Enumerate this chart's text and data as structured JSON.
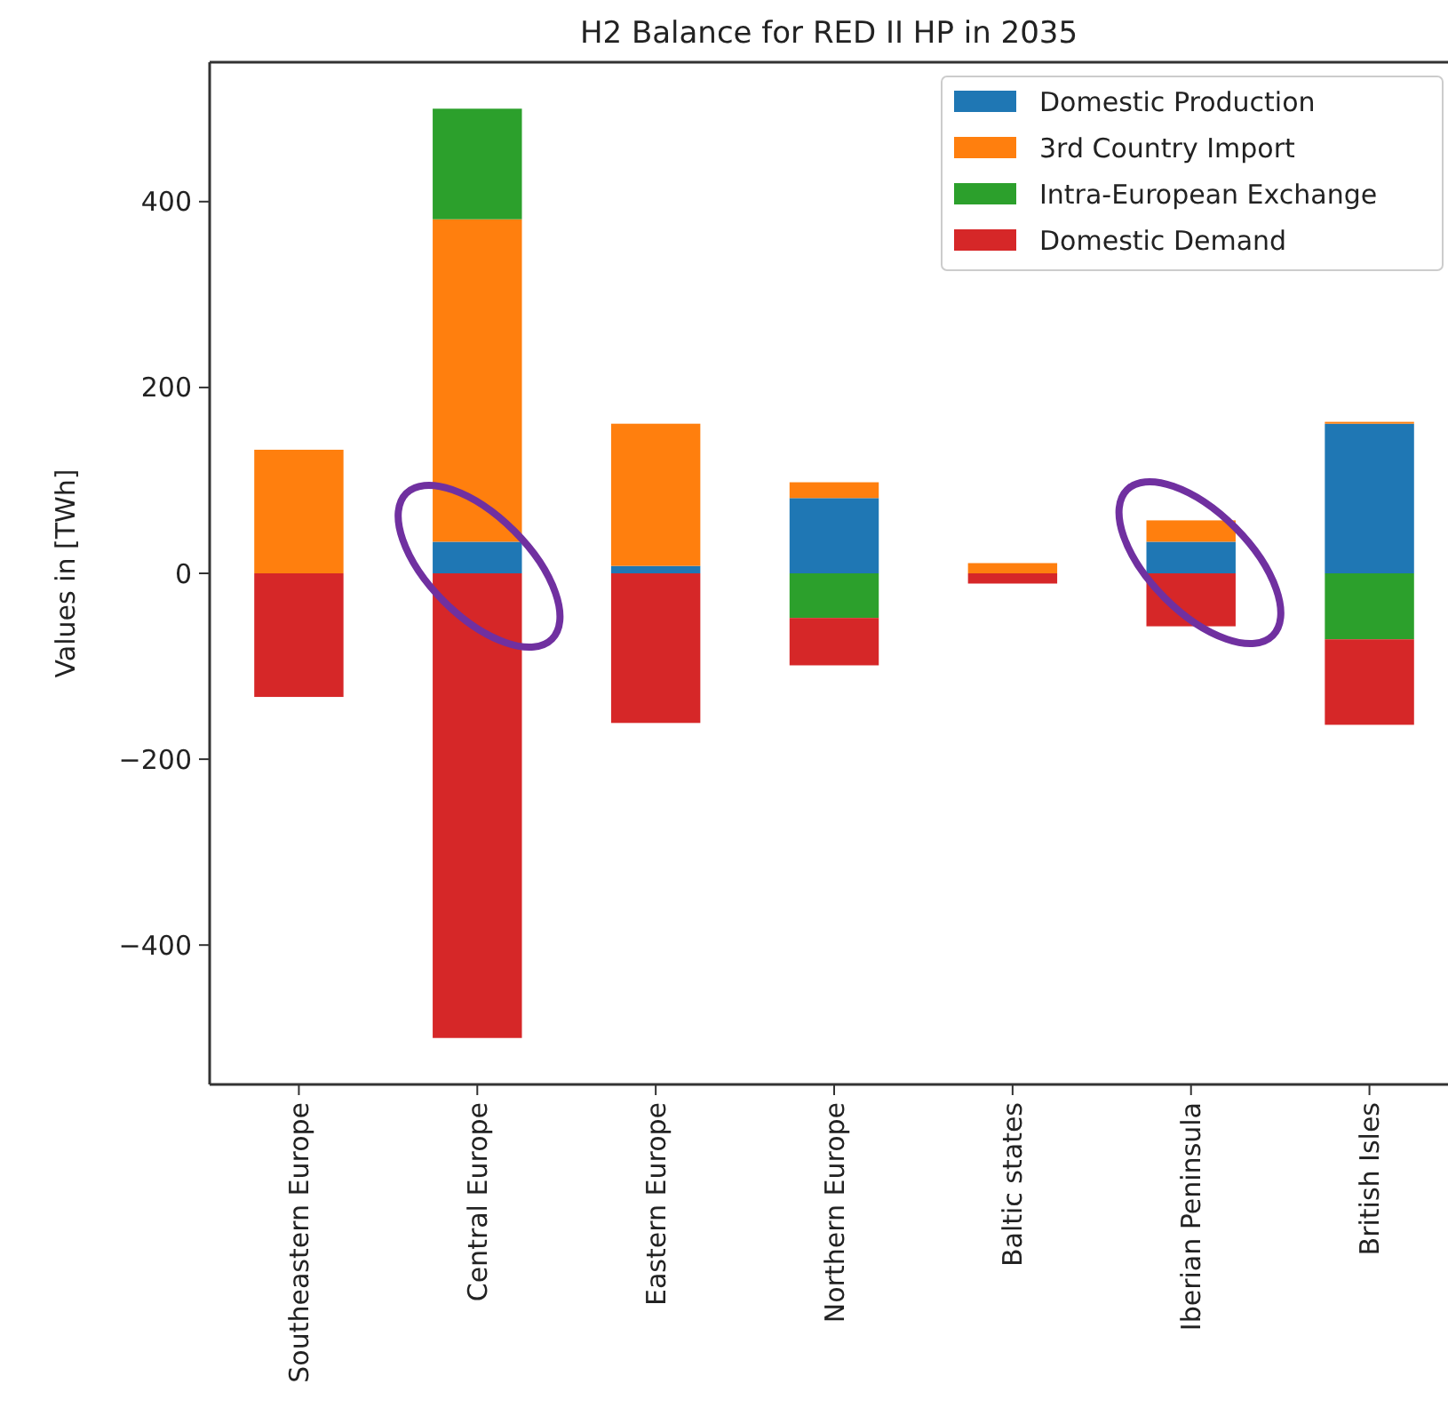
{
  "chart_data": {
    "type": "bar",
    "title": "H2 Balance for RED II HP in 2035",
    "ylabel": "Values in [TWh]",
    "categories": [
      "Southeastern Europe",
      "Central Europe",
      "Eastern Europe",
      "Northern Europe",
      "Baltic states",
      "Iberian Peninsula",
      "British Isles"
    ],
    "series": [
      {
        "name": "Domestic Production",
        "color": "#1f77b4",
        "values": [
          0,
          34,
          8,
          81,
          0,
          34,
          161
        ]
      },
      {
        "name": "3rd Country Import",
        "color": "#ff7f0e",
        "values": [
          133,
          347,
          153,
          17,
          11,
          23,
          2
        ]
      },
      {
        "name": "Intra-European Exchange",
        "color": "#2ca02c",
        "values": [
          0,
          119,
          0,
          -48,
          0,
          0,
          -71
        ]
      },
      {
        "name": "Domestic Demand",
        "color": "#d62728",
        "values": [
          -133,
          -500,
          -161,
          -51,
          -11,
          -57,
          -92
        ]
      }
    ],
    "stacked": true,
    "ylim": [
      -550,
      550
    ],
    "yticks": [
      {
        "value": -400,
        "label": "−400"
      },
      {
        "value": -200,
        "label": "−200"
      },
      0,
      200,
      400
    ],
    "legend": "top right",
    "grid": false
  }
}
